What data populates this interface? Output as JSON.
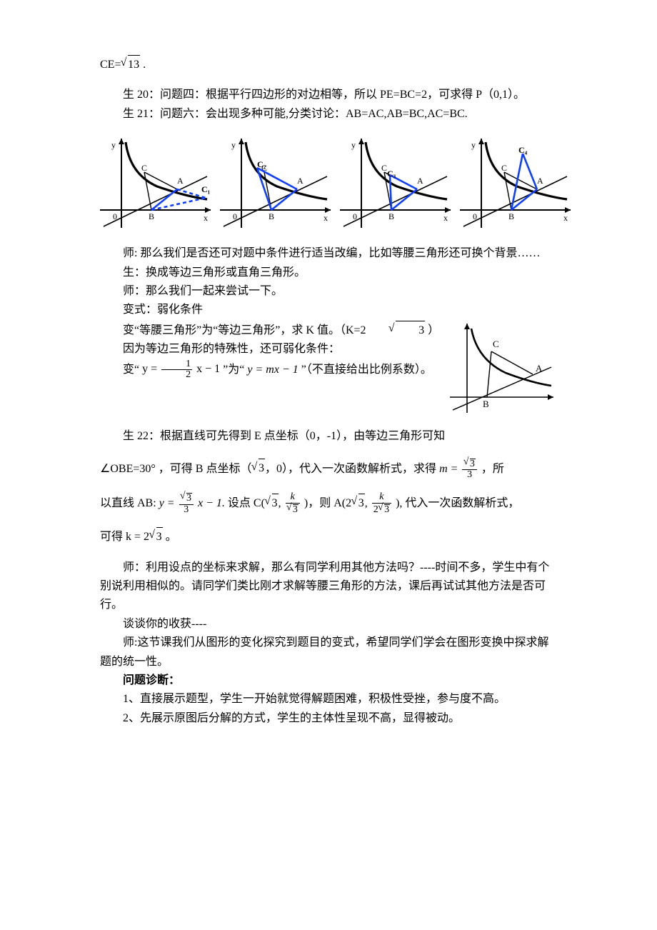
{
  "colors": {
    "text": "#000000",
    "bg": "#ffffff",
    "axis": "#000000",
    "curve": "#000000",
    "highlight": "#1040ff",
    "dashed": "#1040ff"
  },
  "page": {
    "ce_line_prefix": "CE=",
    "ce_value": "13",
    "ce_suffix": " .",
    "s20": "生 20：问题四：根据平行四边形的对边相等，所以 PE=BC=2，可求得 P（0,1）。",
    "s21": "生 21：问题六：会出现多种可能,分类讨论：AB=AC,AB=BC,AC=BC.",
    "t_q1": "师: 那么我们是否还可对题中条件进行适当改编，比如等腰三角形还可换个背景……",
    "s_reply": "生：换成等边三角形或直角三角形。",
    "t_try": "师：那么我们一起来尝试一下。",
    "var_title": "变式：弱化条件",
    "var_line1_a": "变“等腰三角形”为“等边三角形”，求 K 值。（K=2",
    "var_line1_sqrt": "3",
    "var_line1_b": " ）",
    "var_line2": "因为等边三角形的特殊性，还可弱化条件：",
    "var_line3_a": "变“ ",
    "var_line3_b": " ”为“ ",
    "var_line3_c": " ”（不直接给出比例系数）。",
    "eq_y_half_num": "1",
    "eq_y_half_den": "2",
    "eq_y_half_pre": "y =",
    "eq_y_half_post": "x − 1",
    "eq_y_mx": "y = mx − 1",
    "s22_a": "生 22：根据直线可先得到 E 点坐标（0，-1），由等边三角形可知",
    "s22_b_pre": "∠OBE=30° ，可得 B 点坐标（",
    "s22_b_sqrt": "3",
    "s22_b_mid": "，0），代入一次函数解析式，求得 ",
    "m_eq_pre": "m =",
    "m_eq_num_sqrt": "3",
    "m_eq_den": "3",
    "s22_b_post": "，所",
    "s22_c_pre": "以直线 AB: ",
    "ab_eq_pre": "y =",
    "ab_eq_num_sqrt": "3",
    "ab_eq_den": "3",
    "ab_eq_post": "x − 1.",
    "s22_c_mid1": " 设点 C(",
    "s22_c_mid2": ", ",
    "s22_c_mid3": ")，则 A(2",
    "s22_c_mid4": ", ",
    "s22_c_mid5": "), 代入一次函数解析式，",
    "k_over_sqrt3_num": "k",
    "k_over_sqrt3_den_sqrt": "3",
    "k_over_2sqrt3_num": "k",
    "k_over_2sqrt3_den_pre": "2",
    "k_over_2sqrt3_den_sqrt": "3",
    "s22_d_pre": "可得 k = 2",
    "s22_d_sqrt": "3",
    "s22_d_post": " 。",
    "t_use": "师：利用设点的坐标来求解，那么有同学利用其他方法吗？----时间不多，学生中有个别说利用相似的。请同学们类比刚才求解等腰三角形的方法，课后再试试其他方法是否可行。",
    "talk": "谈谈你的收获----",
    "t_summary": "师:这节课我们从图形的变化探究到题目的变式，希望同学们学会在图形变换中探求解题的统一性。",
    "diag_title": "问题诊断：",
    "diag_1": "1、直接展示题型，学生一开始就觉得解题困难，积极性受挫，参与度不高。",
    "diag_2": "2、先展示原图后分解的方式，学生的主体性呈现不高，显得被动。"
  },
  "figrow": {
    "width": 160,
    "height": 135,
    "stroke_axis": 2,
    "stroke_curve": 3.2,
    "stroke_line": 1.6,
    "stroke_highlight": 2.6,
    "font_size": 12,
    "labels": {
      "O": "0",
      "B": "B",
      "A": "A",
      "C": "C",
      "x": "x",
      "y": "y"
    },
    "variants": [
      {
        "cext_label": "C₁",
        "cext_pos": [
          148,
          80
        ],
        "extra": "dashed_right"
      },
      {
        "cext_label": "C₂",
        "cext_pos": [
          58,
          45
        ],
        "extra": "solid_left"
      },
      {
        "cext_label": "C₃",
        "cext_pos": [
          72,
          58
        ],
        "extra": "none_midC"
      },
      {
        "cext_label": "C₄",
        "cext_pos": [
          88,
          25
        ],
        "extra": "vert_up"
      }
    ]
  },
  "sideFig": {
    "width": 150,
    "height": 135,
    "labels": {
      "A": "A",
      "B": "B",
      "C": "C"
    }
  }
}
